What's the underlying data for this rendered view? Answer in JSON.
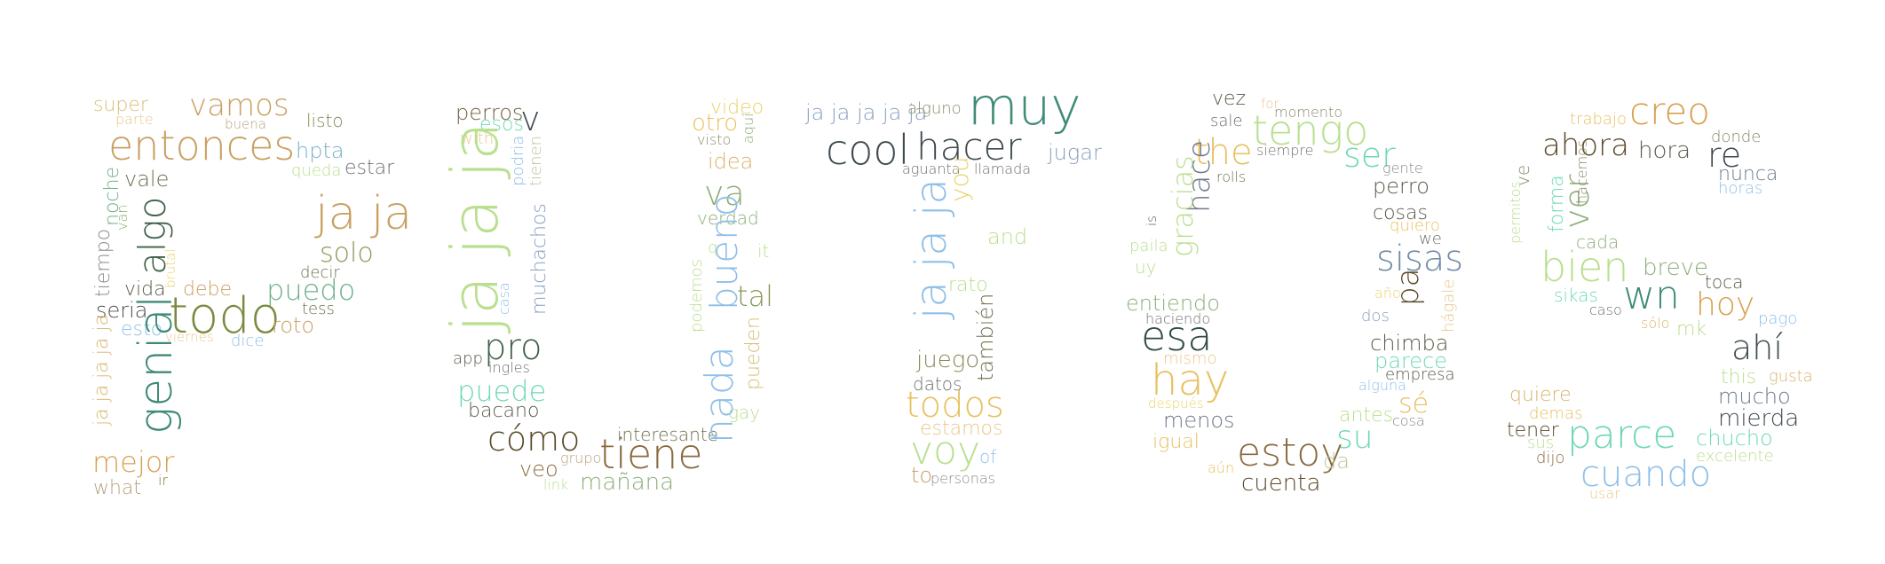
{
  "palette": {
    "background": "#ffffff",
    "tan": "#c9a063",
    "gold": "#d8b36a",
    "olive": "#7a8a55",
    "sage": "#8fae7a",
    "green": "#4f7a55",
    "darkgreen": "#3f5f47",
    "teal": "#3f8a78",
    "mint": "#6fd9b2",
    "lightgreen": "#b9df8f",
    "lightblue": "#8fbfe8",
    "slate": "#6f8aa6",
    "brown": "#8a6a3f",
    "darkbrown": "#5a4a2a",
    "charcoal": "#3f4a4f",
    "yellow": "#e8d36a",
    "grey": "#9aa0a0"
  },
  "words": [
    {
      "id": "p-super",
      "text": "super",
      "color": "#d8c078"
    },
    {
      "id": "p-parte",
      "text": "parte",
      "color": "#e8c88a"
    },
    {
      "id": "p-vamos",
      "text": "vamos",
      "color": "#c9a063"
    },
    {
      "id": "p-buena",
      "text": "buena",
      "color": "#b9a080"
    },
    {
      "id": "p-listo",
      "text": "listo",
      "color": "#7a8a55"
    },
    {
      "id": "p-entonces",
      "text": "entonces",
      "color": "#c9a063"
    },
    {
      "id": "p-hpta",
      "text": "hpta",
      "color": "#7ab0c8"
    },
    {
      "id": "p-estar",
      "text": "estar",
      "color": "#6f6f6f"
    },
    {
      "id": "p-queda",
      "text": "queda",
      "color": "#b9df8f"
    },
    {
      "id": "p-vale",
      "text": "vale",
      "color": "#6f6f4f"
    },
    {
      "id": "p-noche",
      "text": "noche",
      "color": "#6fb08a"
    },
    {
      "id": "p-van",
      "text": "van",
      "color": "#8fae7a"
    },
    {
      "id": "p-algo",
      "text": "algo",
      "color": "#3f5f47"
    },
    {
      "id": "p-jaja",
      "text": "ja ja",
      "color": "#c9a063"
    },
    {
      "id": "p-tiempo",
      "text": "tiempo",
      "color": "#8a8a8a"
    },
    {
      "id": "p-brutal",
      "text": "brutal",
      "color": "#e8d36a"
    },
    {
      "id": "p-solo",
      "text": "solo",
      "color": "#8a9a5a"
    },
    {
      "id": "p-decir",
      "text": "decir",
      "color": "#6f6f4f"
    },
    {
      "id": "p-vida",
      "text": "vida",
      "color": "#5a5a4a"
    },
    {
      "id": "p-debe",
      "text": "debe",
      "color": "#c9a063"
    },
    {
      "id": "p-puedo",
      "text": "puedo",
      "color": "#6fb08a"
    },
    {
      "id": "p-seria",
      "text": "seria",
      "color": "#4f4f4f"
    },
    {
      "id": "p-todo",
      "text": "todo",
      "color": "#7a8a3f"
    },
    {
      "id": "p-tess",
      "text": "tess",
      "color": "#6f6f4f"
    },
    {
      "id": "p-esto",
      "text": "esto",
      "color": "#8fbfe8"
    },
    {
      "id": "p-roto",
      "text": "roto",
      "color": "#c9a063"
    },
    {
      "id": "p-viernes",
      "text": "viernes",
      "color": "#e8c88a"
    },
    {
      "id": "p-dice",
      "text": "dice",
      "color": "#8fbfe8"
    },
    {
      "id": "p-genial",
      "text": "genial",
      "color": "#3f8a78"
    },
    {
      "id": "p-jajajajaja",
      "text": "ja ja ja ja ja",
      "color": "#d8b36a"
    },
    {
      "id": "p-mejor",
      "text": "mejor",
      "color": "#d8a050"
    },
    {
      "id": "p-ir",
      "text": "ir",
      "color": "#8a6a3f"
    },
    {
      "id": "p-what",
      "text": "what",
      "color": "#b9a080"
    },
    {
      "id": "u-perros",
      "text": "perros",
      "color": "#6f5f3f"
    },
    {
      "id": "u-esos",
      "text": "esos",
      "color": "#6fd9b2"
    },
    {
      "id": "u-v",
      "text": "v",
      "color": "#3f4a4f"
    },
    {
      "id": "u-with",
      "text": "with",
      "color": "#e8c88a"
    },
    {
      "id": "u-podria",
      "text": "podria",
      "color": "#8fbfe8"
    },
    {
      "id": "u-tienen",
      "text": "tienen",
      "color": "#b9c8a0"
    },
    {
      "id": "u-jajaja",
      "text": "ja ja ja",
      "color": "#b9df8f"
    },
    {
      "id": "u-muchachos",
      "text": "muchachos",
      "color": "#8aa0c0"
    },
    {
      "id": "u-casa",
      "text": "casa",
      "color": "#8fbfe8"
    },
    {
      "id": "u-app",
      "text": "app",
      "color": "#5a5a4a"
    },
    {
      "id": "u-pro",
      "text": "pro",
      "color": "#3f5f47"
    },
    {
      "id": "u-ingles",
      "text": "ingles",
      "color": "#6f6f6f"
    },
    {
      "id": "u-puede",
      "text": "puede",
      "color": "#6fd9b2"
    },
    {
      "id": "u-bacano",
      "text": "bacano",
      "color": "#5a5a4a"
    },
    {
      "id": "u-como",
      "text": "cómo",
      "color": "#5a4a2a"
    },
    {
      "id": "u-interesante",
      "text": "interesante",
      "color": "#6f6f4f"
    },
    {
      "id": "u-tiene",
      "text": "tiene",
      "color": "#8a6a3f"
    },
    {
      "id": "u-grupo",
      "text": "grupo",
      "color": "#b9a080"
    },
    {
      "id": "u-veo",
      "text": "veo",
      "color": "#8a6a3f"
    },
    {
      "id": "u-link",
      "text": "link",
      "color": "#b9df8f"
    },
    {
      "id": "u-manana",
      "text": "mañana",
      "color": "#8fae7a"
    },
    {
      "id": "u-video",
      "text": "video",
      "color": "#e8d36a"
    },
    {
      "id": "u-otro",
      "text": "otro",
      "color": "#e8c060"
    },
    {
      "id": "u-aqui",
      "text": "aquí",
      "color": "#8fae7a"
    },
    {
      "id": "u-visto",
      "text": "visto",
      "color": "#8a8a6a"
    },
    {
      "id": "u-idea",
      "text": "idea",
      "color": "#d8b36a"
    },
    {
      "id": "u-va",
      "text": "va",
      "color": "#8fae7a"
    },
    {
      "id": "u-verdad",
      "text": "verdad",
      "color": "#8fae7a"
    },
    {
      "id": "u-q",
      "text": "q",
      "color": "#b9df8f"
    },
    {
      "id": "u-it",
      "text": "it",
      "color": "#b9df8f"
    },
    {
      "id": "u-bueno",
      "text": "bueno",
      "color": "#8fbfe8"
    },
    {
      "id": "u-podemos",
      "text": "podemos",
      "color": "#b9df8f"
    },
    {
      "id": "u-tal",
      "text": "tal",
      "color": "#8a9a5a"
    },
    {
      "id": "u-pueden",
      "text": "pueden",
      "color": "#d8c078"
    },
    {
      "id": "u-nada",
      "text": "nada",
      "color": "#8fbfe8"
    },
    {
      "id": "u-gay",
      "text": "gay",
      "color": "#b9df8f"
    },
    {
      "id": "r-jajajajaja",
      "text": "ja ja ja ja ja",
      "color": "#8aa0c0"
    },
    {
      "id": "r-alguno",
      "text": "alguno",
      "color": "#8a8a6a"
    },
    {
      "id": "r-muy",
      "text": "muy",
      "color": "#3f8a78"
    },
    {
      "id": "r-cool",
      "text": "cool",
      "color": "#3f4a4f"
    },
    {
      "id": "r-hacer",
      "text": "hacer",
      "color": "#3f4a4f"
    },
    {
      "id": "r-jugar",
      "text": "jugar",
      "color": "#8aa0c0"
    },
    {
      "id": "r-aguanta",
      "text": "aguanta",
      "color": "#6f6f6f"
    },
    {
      "id": "r-llamada",
      "text": "llamada",
      "color": "#6f6f6f"
    },
    {
      "id": "r-you",
      "text": "you",
      "color": "#e8d36a"
    },
    {
      "id": "r-jajaja",
      "text": "ja ja ja",
      "color": "#8fbfe8"
    },
    {
      "id": "r-and",
      "text": "and",
      "color": "#b9df8f"
    },
    {
      "id": "r-rato",
      "text": "rato",
      "color": "#b9df8f"
    },
    {
      "id": "r-tambien",
      "text": "también",
      "color": "#6f6f4f"
    },
    {
      "id": "r-juego",
      "text": "juego",
      "color": "#8a8a5a"
    },
    {
      "id": "r-datos",
      "text": "datos",
      "color": "#6f6f6f"
    },
    {
      "id": "r-todos",
      "text": "todos",
      "color": "#e8c060"
    },
    {
      "id": "r-estamos",
      "text": "estamos",
      "color": "#e8c88a"
    },
    {
      "id": "r-voy",
      "text": "voy",
      "color": "#b9df8f"
    },
    {
      "id": "r-of",
      "text": "of",
      "color": "#8fbfe8"
    },
    {
      "id": "r-to",
      "text": "to",
      "color": "#c9a063"
    },
    {
      "id": "r-personas",
      "text": "personas",
      "color": "#8a8a8a"
    },
    {
      "id": "o-vez",
      "text": "vez",
      "color": "#5a5a4a"
    },
    {
      "id": "o-for",
      "text": "for",
      "color": "#e8c88a"
    },
    {
      "id": "o-momento",
      "text": "momento",
      "color": "#8a8a6a"
    },
    {
      "id": "o-sale",
      "text": "sale",
      "color": "#6f6f6f"
    },
    {
      "id": "o-tengo",
      "text": "tengo",
      "color": "#b9df8f"
    },
    {
      "id": "o-the",
      "text": "the",
      "color": "#e8c060"
    },
    {
      "id": "o-siempre",
      "text": "siempre",
      "color": "#6f6f6f"
    },
    {
      "id": "o-ser",
      "text": "ser",
      "color": "#6fd9b2"
    },
    {
      "id": "o-gente",
      "text": "gente",
      "color": "#8a8a8a"
    },
    {
      "id": "o-rolls",
      "text": "rolls",
      "color": "#6f6f4f"
    },
    {
      "id": "o-hace",
      "text": "hace",
      "color": "#6f7a8a"
    },
    {
      "id": "o-perro",
      "text": "perro",
      "color": "#5a5a4a"
    },
    {
      "id": "o-gracias",
      "text": "gracias",
      "color": "#b9df8f"
    },
    {
      "id": "o-cosas",
      "text": "cosas",
      "color": "#5a5a4a"
    },
    {
      "id": "o-quiero",
      "text": "quiero",
      "color": "#e8c060"
    },
    {
      "id": "o-we",
      "text": "we",
      "color": "#6f6f6f"
    },
    {
      "id": "o-is",
      "text": "is",
      "color": "#5a5a4a"
    },
    {
      "id": "o-paila",
      "text": "paila",
      "color": "#b9df8f"
    },
    {
      "id": "o-sisas",
      "text": "sisas",
      "color": "#6f8aa6"
    },
    {
      "id": "o-uy",
      "text": "uy",
      "color": "#b9df8f"
    },
    {
      "id": "o-ano",
      "text": "año",
      "color": "#e8d36a"
    },
    {
      "id": "o-entiendo",
      "text": "entiendo",
      "color": "#8fae7a"
    },
    {
      "id": "o-haciendo",
      "text": "haciendo",
      "color": "#6f6f6f"
    },
    {
      "id": "o-dos",
      "text": "dos",
      "color": "#8aa0c0"
    },
    {
      "id": "o-pa",
      "text": "pa",
      "color": "#5a4a2a"
    },
    {
      "id": "o-hagale",
      "text": "hágale",
      "color": "#e8c88a"
    },
    {
      "id": "o-esa",
      "text": "esa",
      "color": "#2f4a3f"
    },
    {
      "id": "o-chimba",
      "text": "chimba",
      "color": "#5a5a4a"
    },
    {
      "id": "o-mismo",
      "text": "mismo",
      "color": "#e8c88a"
    },
    {
      "id": "o-hay",
      "text": "hay",
      "color": "#e8c060"
    },
    {
      "id": "o-parece",
      "text": "parece",
      "color": "#6fd9b2"
    },
    {
      "id": "o-empresa",
      "text": "empresa",
      "color": "#5a5a4a"
    },
    {
      "id": "o-alguna",
      "text": "alguna",
      "color": "#8fbfe8"
    },
    {
      "id": "o-despues",
      "text": "después",
      "color": "#e8d36a"
    },
    {
      "id": "o-se",
      "text": "sé",
      "color": "#e8c060"
    },
    {
      "id": "o-antes",
      "text": "antes",
      "color": "#b9df8f"
    },
    {
      "id": "o-cosa",
      "text": "cosa",
      "color": "#8a8a8a"
    },
    {
      "id": "o-menos",
      "text": "menos",
      "color": "#6f7a8a"
    },
    {
      "id": "o-su",
      "text": "su",
      "color": "#6fd9b2"
    },
    {
      "id": "o-igual",
      "text": "igual",
      "color": "#e8c060"
    },
    {
      "id": "o-estoy",
      "text": "estoy",
      "color": "#8a6a3f"
    },
    {
      "id": "o-da",
      "text": "da",
      "color": "#b9c8a0"
    },
    {
      "id": "o-aun",
      "text": "aún",
      "color": "#e8c060"
    },
    {
      "id": "o-cuenta",
      "text": "cuenta",
      "color": "#5a4a2a"
    },
    {
      "id": "s-trabajo",
      "text": "trabajo",
      "color": "#e8c060"
    },
    {
      "id": "s-creo",
      "text": "creo",
      "color": "#d8a050"
    },
    {
      "id": "s-donde",
      "text": "donde",
      "color": "#8a8a6a"
    },
    {
      "id": "s-ahora",
      "text": "ahora",
      "color": "#5a4a2a"
    },
    {
      "id": "s-hora",
      "text": "hora",
      "color": "#5a5a4a"
    },
    {
      "id": "s-re",
      "text": "re",
      "color": "#3f4a4f"
    },
    {
      "id": "s-ve",
      "text": "ve",
      "color": "#8a8a6a"
    },
    {
      "id": "s-forma",
      "text": "forma",
      "color": "#6fd9b2"
    },
    {
      "id": "s-ver",
      "text": "ver",
      "color": "#8fae7a"
    },
    {
      "id": "s-hacemos",
      "text": "hacemos",
      "color": "#8a8a6a"
    },
    {
      "id": "s-nunca",
      "text": "nunca",
      "color": "#6f7a8a"
    },
    {
      "id": "s-horas",
      "text": "horas",
      "color": "#8fbfe8"
    },
    {
      "id": "s-permitos",
      "text": "permitos",
      "color": "#b9df8f"
    },
    {
      "id": "s-cada",
      "text": "cada",
      "color": "#8fae7a"
    },
    {
      "id": "s-bien",
      "text": "bien",
      "color": "#b9df8f"
    },
    {
      "id": "s-breve",
      "text": "breve",
      "color": "#8fae7a"
    },
    {
      "id": "s-toca",
      "text": "toca",
      "color": "#5a5a4a"
    },
    {
      "id": "s-wn",
      "text": "wn",
      "color": "#3f8a78"
    },
    {
      "id": "s-sikas",
      "text": "sikas",
      "color": "#6fd9b2"
    },
    {
      "id": "s-caso",
      "text": "caso",
      "color": "#6f6f6f"
    },
    {
      "id": "s-hoy",
      "text": "hoy",
      "color": "#d8a050"
    },
    {
      "id": "s-pago",
      "text": "pago",
      "color": "#8fbfe8"
    },
    {
      "id": "s-solo",
      "text": "sólo",
      "color": "#d8b36a"
    },
    {
      "id": "s-mk",
      "text": "mk",
      "color": "#b9df8f"
    },
    {
      "id": "s-ahi",
      "text": "ahí",
      "color": "#3f4a4f"
    },
    {
      "id": "s-this",
      "text": "this",
      "color": "#b9df8f"
    },
    {
      "id": "s-gusta",
      "text": "gusta",
      "color": "#d8b36a"
    },
    {
      "id": "s-quiere",
      "text": "quiere",
      "color": "#d8b36a"
    },
    {
      "id": "s-mucho",
      "text": "mucho",
      "color": "#6f7a8a"
    },
    {
      "id": "s-demas",
      "text": "demas",
      "color": "#e8c060"
    },
    {
      "id": "s-tener",
      "text": "tener",
      "color": "#5a4a2a"
    },
    {
      "id": "s-mierda",
      "text": "mierda",
      "color": "#3f4a4f"
    },
    {
      "id": "s-sus",
      "text": "sus",
      "color": "#b9df8f"
    },
    {
      "id": "s-parce",
      "text": "parce",
      "color": "#6fd9b2"
    },
    {
      "id": "s-chucho",
      "text": "chucho",
      "color": "#6fd9b2"
    },
    {
      "id": "s-dijo",
      "text": "dijo",
      "color": "#8a6a3f"
    },
    {
      "id": "s-excelente",
      "text": "excelente",
      "color": "#b9df8f"
    },
    {
      "id": "s-cuando",
      "text": "cuando",
      "color": "#8fbfe8"
    },
    {
      "id": "s-usar",
      "text": "usar",
      "color": "#e8c88a"
    }
  ]
}
